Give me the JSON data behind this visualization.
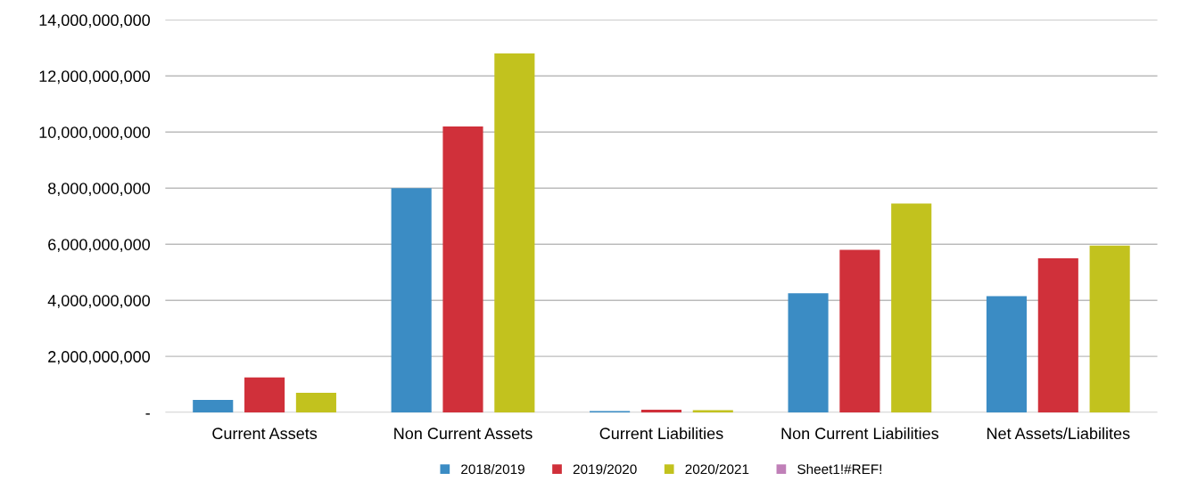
{
  "chart_data": {
    "type": "bar",
    "categories": [
      "Current Assets",
      "Non Current Assets",
      "Current Liabilities",
      "Non Current Liabilities",
      "Net Assets/Liabilites"
    ],
    "series": [
      {
        "name": "2018/2019",
        "color": "#3b8cc4",
        "values": [
          450000000,
          8000000000,
          50000000,
          4250000000,
          4150000000
        ]
      },
      {
        "name": "2019/2020",
        "color": "#d0303a",
        "values": [
          1250000000,
          10200000000,
          100000000,
          5800000000,
          5500000000
        ]
      },
      {
        "name": "2020/2021",
        "color": "#c2c21e",
        "values": [
          700000000,
          12800000000,
          80000000,
          7450000000,
          5950000000
        ]
      },
      {
        "name": "Sheet1!#REF!",
        "color": "#c080b8",
        "values": [
          null,
          null,
          null,
          null,
          null
        ]
      }
    ],
    "ylim": [
      0,
      14000000000
    ],
    "yticks": [
      {
        "value": 0,
        "label": "-"
      },
      {
        "value": 2000000000,
        "label": "2,000,000,000"
      },
      {
        "value": 4000000000,
        "label": "4,000,000,000"
      },
      {
        "value": 6000000000,
        "label": "6,000,000,000"
      },
      {
        "value": 8000000000,
        "label": "8,000,000,000"
      },
      {
        "value": 10000000000,
        "label": "10,000,000,000"
      },
      {
        "value": 12000000000,
        "label": "12,000,000,000"
      },
      {
        "value": 14000000000,
        "label": "14,000,000,000"
      }
    ],
    "grid": "y",
    "legend": "bottom"
  }
}
